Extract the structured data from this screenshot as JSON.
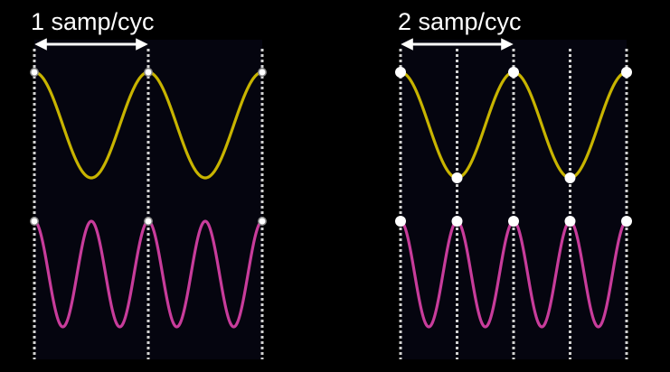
{
  "colors": {
    "background": "#000000",
    "plot_area": "#05050f",
    "slow_wave": "#c8b400",
    "fast_wave": "#c83c9b",
    "sample_line": "#d2d2d2",
    "sample_dot": "#ffffff",
    "arrow": "#ffffff",
    "label": "#ffffff"
  },
  "panels": [
    {
      "label": "1 samp/cyc",
      "samples_per_cycle": 1,
      "slow_wave_cycles": 2,
      "fast_wave_cycles": 4
    },
    {
      "label": "2 samp/cyc",
      "samples_per_cycle": 2,
      "slow_wave_cycles": 2,
      "fast_wave_cycles": 4
    }
  ],
  "icons": {
    "period_arrow": "double-headed-arrow-icon",
    "sample_point": "circle-dot-icon"
  }
}
